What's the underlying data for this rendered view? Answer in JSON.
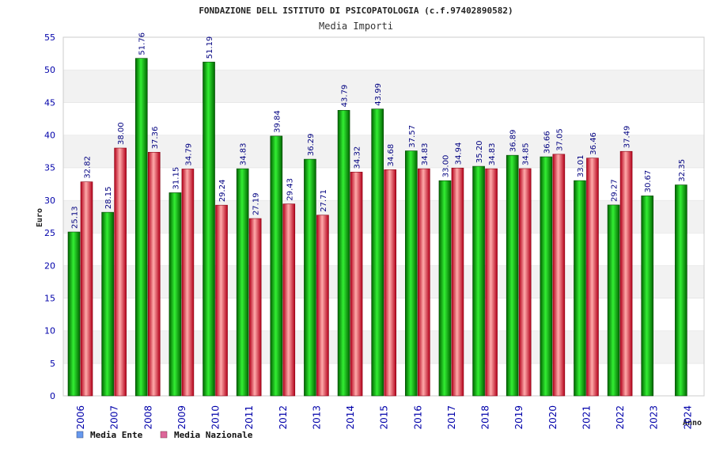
{
  "colors": {
    "ente_dark": "#006600",
    "ente_light": "#33ee33",
    "naz_dark": "#b3001a",
    "naz_light": "#ffaaaa",
    "band": "#f2f2f2",
    "axis_text": "#0000aa",
    "legend_ente": "#6699ee",
    "legend_naz": "#dd6699"
  },
  "chart_data": {
    "type": "bar",
    "title": "FONDAZIONE DELL ISTITUTO DI PSICOPATOLOGIA (c.f.97402890582)",
    "subtitle": "Media Importi",
    "ylabel": "Euro",
    "xlabel": "Anno",
    "ylim": [
      0,
      55
    ],
    "yticks": [
      0,
      5,
      10,
      15,
      20,
      25,
      30,
      35,
      40,
      45,
      50,
      55
    ],
    "categories": [
      "2006",
      "2007",
      "2008",
      "2009",
      "2010",
      "2011",
      "2012",
      "2013",
      "2014",
      "2015",
      "2016",
      "2017",
      "2018",
      "2019",
      "2020",
      "2021",
      "2022",
      "2023",
      "2024"
    ],
    "series": [
      {
        "name": "Media Ente",
        "values": [
          25.13,
          28.15,
          51.76,
          31.15,
          51.19,
          34.83,
          39.84,
          36.29,
          43.79,
          43.99,
          37.57,
          33.0,
          35.2,
          36.89,
          36.66,
          33.01,
          29.27,
          30.67,
          32.35
        ],
        "labels": [
          "25.13",
          "28.15",
          "51.76",
          "31.15",
          "51.19",
          "34.83",
          "39.84",
          "36.29",
          "43.79",
          "43.99",
          "37.57",
          "33.00",
          "35.20",
          "36.89",
          "36.66",
          "33.01",
          "29.27",
          "30.67",
          "32.35"
        ]
      },
      {
        "name": "Media Nazionale",
        "values": [
          32.82,
          38.0,
          37.36,
          34.79,
          29.24,
          27.19,
          29.43,
          27.71,
          34.32,
          34.68,
          34.83,
          34.94,
          34.83,
          34.85,
          37.05,
          36.46,
          37.49,
          null,
          null
        ],
        "labels": [
          "32.82",
          "38.00",
          "37.36",
          "34.79",
          "29.24",
          "27.19",
          "29.43",
          "27.71",
          "34.32",
          "34.68",
          "34.83",
          "34.94",
          "34.83",
          "34.85",
          "37.05",
          "36.46",
          "37.49",
          null,
          null
        ]
      }
    ],
    "legend": [
      "Media Ente",
      "Media Nazionale"
    ],
    "legend_position": "bottom-left",
    "grid": true
  }
}
